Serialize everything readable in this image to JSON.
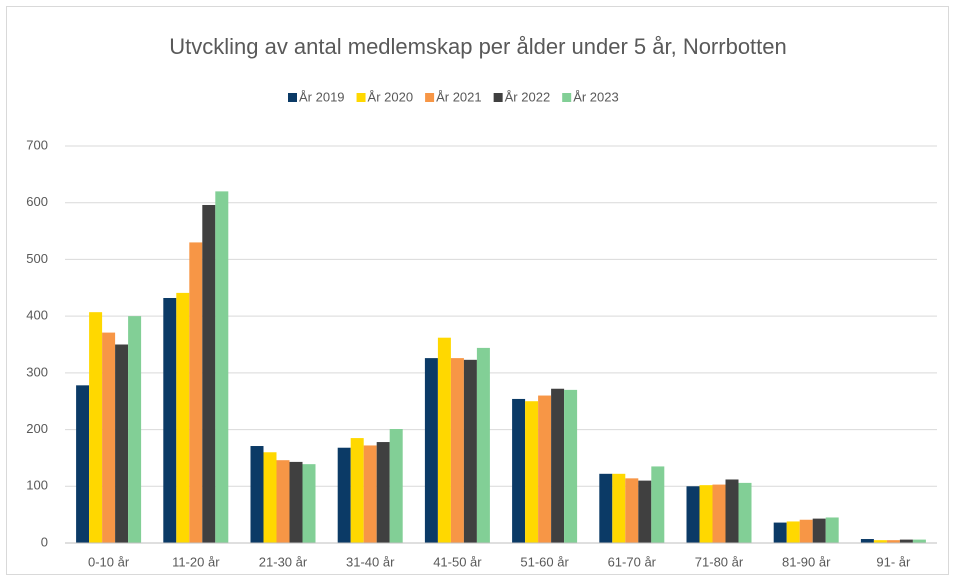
{
  "chart_data": {
    "type": "bar",
    "title": "Utvckling av antal medlemskap per ålder under 5 år, Norrbotten",
    "categories": [
      "0-10 år",
      "11-20 år",
      "21-30 år",
      "31-40 år",
      "41-50 år",
      "51-60 år",
      "61-70 år",
      "71-80 år",
      "81-90 år",
      "91- år"
    ],
    "series": [
      {
        "name": "År 2019",
        "color": "#0b3a66",
        "values": [
          278,
          432,
          171,
          168,
          326,
          254,
          122,
          100,
          36,
          7
        ]
      },
      {
        "name": "År 2020",
        "color": "#ffd800",
        "values": [
          407,
          441,
          160,
          185,
          362,
          250,
          122,
          102,
          38,
          5
        ]
      },
      {
        "name": "År 2021",
        "color": "#f79646",
        "values": [
          371,
          530,
          146,
          172,
          326,
          260,
          114,
          103,
          41,
          5
        ]
      },
      {
        "name": "År 2022",
        "color": "#404040",
        "values": [
          350,
          596,
          143,
          178,
          323,
          272,
          110,
          112,
          43,
          6
        ]
      },
      {
        "name": "År 2023",
        "color": "#82cf96",
        "values": [
          400,
          620,
          139,
          201,
          344,
          270,
          135,
          106,
          45,
          6
        ]
      }
    ],
    "ylim": [
      0,
      700
    ],
    "yticks": [
      0,
      100,
      200,
      300,
      400,
      500,
      600,
      700
    ],
    "grid": true,
    "legend": "top"
  }
}
